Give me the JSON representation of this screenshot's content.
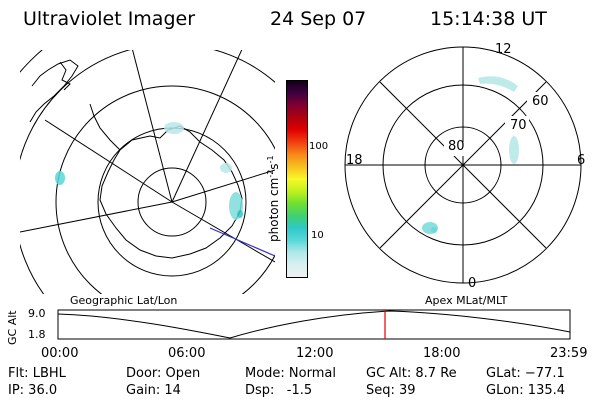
{
  "header": {
    "instrument": "Ultraviolet Imager",
    "date": "24 Sep 07",
    "time": "15:14:38 UT"
  },
  "colorbar": {
    "unit_label": "photon cm",
    "unit_exp1": "-2",
    "unit_s": "s",
    "unit_exp2": "-1",
    "tick_100": "100",
    "tick_10": "10",
    "colors": [
      "#f0f0f0",
      "#d8f0f0",
      "#b0e8e8",
      "#58d8d8",
      "#30c8c8",
      "#40d070",
      "#70e030",
      "#c0f020",
      "#f8f828",
      "#f8c020",
      "#f88818",
      "#f04010",
      "#e00000",
      "#b00010",
      "#800030",
      "#400040",
      "#100018"
    ]
  },
  "left_map": {
    "caption": "Geographic Lat/Lon"
  },
  "right_map": {
    "caption": "Apex MLat/MLT",
    "lat_labels": [
      "80",
      "70",
      "60"
    ],
    "mlt_labels": {
      "top": "12",
      "bottom": "0",
      "left": "18",
      "right": "6"
    }
  },
  "altitude_plot": {
    "y_label": "GC Alt",
    "y_ticks": [
      "9.0",
      "1.8"
    ],
    "x_ticks": [
      "00:00",
      "06:00",
      "12:00",
      "18:00",
      "23:59"
    ]
  },
  "status": {
    "flt": "Flt: LBHL",
    "ip": "IP: 36.0",
    "door": "Door: Open",
    "gain": "Gain: 14",
    "mode": "Mode: Normal",
    "dsp": "Dsp:   -1.5",
    "gc_alt": "GC Alt: 8.7 Re",
    "seq": "Seq: 39",
    "glat": "GLat: −77.1",
    "glon": "GLon: 135.4"
  }
}
